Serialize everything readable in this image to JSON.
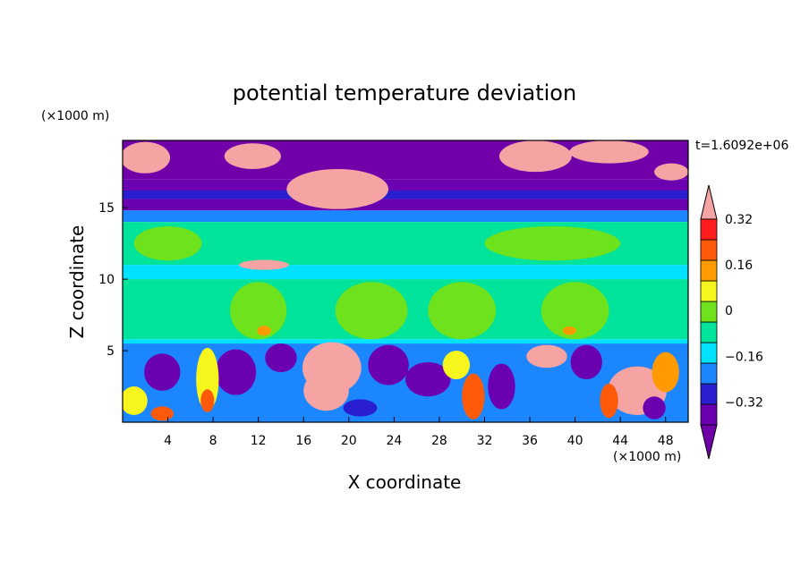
{
  "chart_data": {
    "type": "heatmap",
    "title": "potential temperature deviation",
    "xlabel": "X coordinate",
    "ylabel": "Z coordinate",
    "x_unit": "(×1000 m)",
    "y_unit": "(×1000 m)",
    "time_label": "t=1.6092e+06",
    "xlim": [
      0,
      50
    ],
    "ylim": [
      0,
      19.7
    ],
    "x_ticks": [
      4,
      8,
      12,
      16,
      20,
      24,
      28,
      32,
      36,
      40,
      44,
      48
    ],
    "y_ticks": [
      5,
      10,
      15
    ],
    "colorbar": {
      "levels": [
        -0.4,
        -0.32,
        -0.24,
        -0.16,
        -0.08,
        0,
        0.08,
        0.16,
        0.24,
        0.32,
        0.4
      ],
      "tick_labels": [
        "0.32",
        "0.16",
        "0",
        "−0.16",
        "−0.32"
      ],
      "tick_values": [
        0.32,
        0.16,
        0,
        -0.16,
        -0.32
      ],
      "colors": [
        "#6b00b0",
        "#2a1fd0",
        "#1c86ff",
        "#00e0ff",
        "#00e39a",
        "#6ee21c",
        "#f6f61e",
        "#ff9a00",
        "#ff5a0a",
        "#ff1e1e",
        "#f5a3a3"
      ],
      "under_color": "#7000a8",
      "over_color": "#f5a3a3"
    },
    "bands": [
      {
        "z_min": 17.0,
        "z_max": 19.7,
        "value": -0.45
      },
      {
        "z_min": 16.2,
        "z_max": 17.0,
        "value": -0.36
      },
      {
        "z_min": 15.6,
        "z_max": 16.2,
        "value": -0.28
      },
      {
        "z_min": 14.8,
        "z_max": 15.6,
        "value": -0.36
      },
      {
        "z_min": 14.0,
        "z_max": 14.8,
        "value": -0.2
      },
      {
        "z_min": 11.0,
        "z_max": 14.0,
        "value": -0.04
      },
      {
        "z_min": 10.0,
        "z_max": 11.0,
        "value": -0.12
      },
      {
        "z_min": 5.8,
        "z_max": 10.0,
        "value": -0.04
      },
      {
        "z_min": 5.5,
        "z_max": 5.8,
        "value": -0.12
      },
      {
        "z_min": 0,
        "z_max": 5.5,
        "value": -0.2
      }
    ],
    "features": [
      {
        "x": 2.0,
        "z": 18.5,
        "rx": 2.2,
        "rz": 1.1,
        "value": 0.45
      },
      {
        "x": 11.5,
        "z": 18.6,
        "rx": 2.5,
        "rz": 0.9,
        "value": 0.45
      },
      {
        "x": 19.0,
        "z": 16.3,
        "rx": 4.5,
        "rz": 1.4,
        "value": 0.45
      },
      {
        "x": 36.5,
        "z": 18.6,
        "rx": 3.2,
        "rz": 1.1,
        "value": 0.45
      },
      {
        "x": 43.0,
        "z": 18.9,
        "rx": 3.5,
        "rz": 0.8,
        "value": 0.45
      },
      {
        "x": 48.5,
        "z": 17.5,
        "rx": 1.5,
        "rz": 0.6,
        "value": 0.45
      },
      {
        "x": 12.5,
        "z": 11.0,
        "rx": 2.2,
        "rz": 0.35,
        "value": 0.45
      },
      {
        "x": 18.5,
        "z": 3.8,
        "rx": 2.6,
        "rz": 1.8,
        "value": 0.45
      },
      {
        "x": 18.0,
        "z": 2.2,
        "rx": 2.0,
        "rz": 1.4,
        "value": 0.45
      },
      {
        "x": 45.5,
        "z": 2.2,
        "rx": 2.6,
        "rz": 1.7,
        "value": 0.45
      },
      {
        "x": 37.5,
        "z": 4.6,
        "rx": 1.8,
        "rz": 0.8,
        "value": 0.45
      },
      {
        "x": 12.0,
        "z": 7.8,
        "rx": 2.5,
        "rz": 2.0,
        "value": 0.06
      },
      {
        "x": 22.0,
        "z": 7.8,
        "rx": 3.2,
        "rz": 2.0,
        "value": 0.06
      },
      {
        "x": 30.0,
        "z": 7.8,
        "rx": 3.0,
        "rz": 2.0,
        "value": 0.06
      },
      {
        "x": 40.0,
        "z": 7.8,
        "rx": 3.0,
        "rz": 2.0,
        "value": 0.06
      },
      {
        "x": 4.0,
        "z": 12.5,
        "rx": 3.0,
        "rz": 1.2,
        "value": 0.06
      },
      {
        "x": 38.0,
        "z": 12.5,
        "rx": 6.0,
        "rz": 1.2,
        "value": 0.06
      },
      {
        "x": 12.5,
        "z": 6.4,
        "rx": 0.6,
        "rz": 0.35,
        "value": 0.2
      },
      {
        "x": 39.5,
        "z": 6.4,
        "rx": 0.6,
        "rz": 0.3,
        "value": 0.2
      },
      {
        "x": 3.5,
        "z": 3.5,
        "rx": 1.6,
        "rz": 1.3,
        "value": -0.4
      },
      {
        "x": 10.0,
        "z": 3.5,
        "rx": 1.8,
        "rz": 1.6,
        "value": -0.4
      },
      {
        "x": 14.0,
        "z": 4.5,
        "rx": 1.4,
        "rz": 1.0,
        "value": -0.4
      },
      {
        "x": 23.5,
        "z": 4.0,
        "rx": 1.8,
        "rz": 1.4,
        "value": -0.4
      },
      {
        "x": 27.0,
        "z": 3.0,
        "rx": 2.0,
        "rz": 1.2,
        "value": -0.4
      },
      {
        "x": 33.5,
        "z": 2.5,
        "rx": 1.2,
        "rz": 1.6,
        "value": -0.4
      },
      {
        "x": 41.0,
        "z": 4.2,
        "rx": 1.4,
        "rz": 1.2,
        "value": -0.4
      },
      {
        "x": 7.5,
        "z": 3.0,
        "rx": 1.0,
        "rz": 2.2,
        "value": 0.12
      },
      {
        "x": 7.5,
        "z": 1.5,
        "rx": 0.6,
        "rz": 0.8,
        "value": 0.3
      },
      {
        "x": 1.0,
        "z": 1.5,
        "rx": 1.2,
        "rz": 1.0,
        "value": 0.1
      },
      {
        "x": 3.5,
        "z": 0.6,
        "rx": 1.0,
        "rz": 0.5,
        "value": 0.3
      },
      {
        "x": 31.0,
        "z": 1.8,
        "rx": 1.0,
        "rz": 1.6,
        "value": 0.24
      },
      {
        "x": 29.5,
        "z": 4.0,
        "rx": 1.2,
        "rz": 1.0,
        "value": 0.1
      },
      {
        "x": 43.0,
        "z": 1.5,
        "rx": 0.8,
        "rz": 1.2,
        "value": 0.3
      },
      {
        "x": 48.0,
        "z": 3.5,
        "rx": 1.2,
        "rz": 1.4,
        "value": 0.2
      },
      {
        "x": 47.0,
        "z": 1.0,
        "rx": 1.0,
        "rz": 0.8,
        "value": -0.4
      },
      {
        "x": 21.0,
        "z": 1.0,
        "rx": 1.5,
        "rz": 0.6,
        "value": -0.28
      }
    ]
  }
}
